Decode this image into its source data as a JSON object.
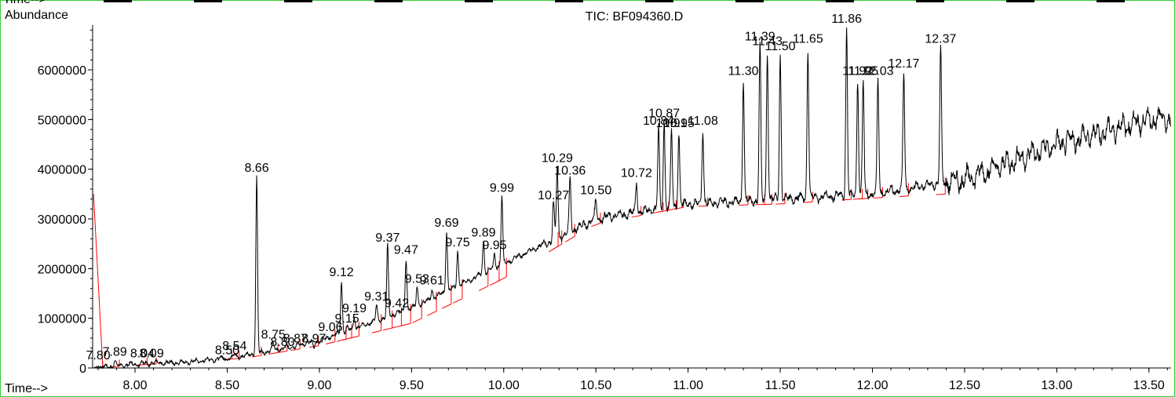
{
  "chart_data": {
    "type": "line",
    "title": "TIC: BF094360.D",
    "ylabel": "Abundance",
    "xlabel": "Time-->",
    "top_strip_label": "Time-->",
    "xlim": [
      7.77,
      13.62
    ],
    "ylim": [
      0,
      6900000
    ],
    "x_ticks": [
      "8.00",
      "8.50",
      "9.00",
      "9.50",
      "10.00",
      "10.50",
      "11.00",
      "11.50",
      "12.00",
      "12.50",
      "13.00",
      "13.50"
    ],
    "y_ticks": [
      "0",
      "1000000",
      "2000000",
      "3000000",
      "4000000",
      "5000000",
      "6000000"
    ],
    "colors": {
      "trace": "#000000",
      "baseline": "#ff0000",
      "frame": "#33cc33"
    },
    "baseline": [
      {
        "x": 7.78,
        "y": 0
      },
      {
        "x": 8.6,
        "y": 200000
      },
      {
        "x": 9.0,
        "y": 450000
      },
      {
        "x": 9.5,
        "y": 900000
      },
      {
        "x": 10.0,
        "y": 1800000
      },
      {
        "x": 10.5,
        "y": 2900000
      },
      {
        "x": 11.0,
        "y": 3250000
      },
      {
        "x": 11.5,
        "y": 3300000
      },
      {
        "x": 12.0,
        "y": 3420000
      },
      {
        "x": 12.4,
        "y": 3500000
      }
    ],
    "background": [
      {
        "x": 7.78,
        "y": 0
      },
      {
        "x": 8.0,
        "y": 80000
      },
      {
        "x": 8.3,
        "y": 120000
      },
      {
        "x": 8.6,
        "y": 250000
      },
      {
        "x": 9.0,
        "y": 550000
      },
      {
        "x": 9.5,
        "y": 1200000
      },
      {
        "x": 10.0,
        "y": 2100000
      },
      {
        "x": 10.5,
        "y": 3000000
      },
      {
        "x": 11.0,
        "y": 3300000
      },
      {
        "x": 11.5,
        "y": 3400000
      },
      {
        "x": 12.0,
        "y": 3500000
      },
      {
        "x": 12.5,
        "y": 3800000
      },
      {
        "x": 13.0,
        "y": 4500000
      },
      {
        "x": 13.5,
        "y": 5000000
      },
      {
        "x": 13.62,
        "y": 5000000
      }
    ],
    "peaks": [
      {
        "label": "7.80",
        "x": 7.8,
        "y": 80000
      },
      {
        "label": "7.89",
        "x": 7.89,
        "y": 150000
      },
      {
        "label": "8.04",
        "x": 8.04,
        "y": 120000
      },
      {
        "label": "8.09",
        "x": 8.09,
        "y": 120000
      },
      {
        "label": "8.50",
        "x": 8.5,
        "y": 180000
      },
      {
        "label": "8.54",
        "x": 8.54,
        "y": 270000
      },
      {
        "label": "8.66",
        "x": 8.66,
        "y": 3850000
      },
      {
        "label": "8.75",
        "x": 8.75,
        "y": 500000
      },
      {
        "label": "8.80",
        "x": 8.8,
        "y": 350000
      },
      {
        "label": "8.87",
        "x": 8.87,
        "y": 420000
      },
      {
        "label": "8.97",
        "x": 8.97,
        "y": 420000
      },
      {
        "label": "9.06",
        "x": 9.06,
        "y": 650000
      },
      {
        "label": "9.12",
        "x": 9.12,
        "y": 1750000
      },
      {
        "label": "9.15",
        "x": 9.15,
        "y": 820000
      },
      {
        "label": "9.19",
        "x": 9.19,
        "y": 1030000
      },
      {
        "label": "9.31",
        "x": 9.31,
        "y": 1260000
      },
      {
        "label": "9.37",
        "x": 9.37,
        "y": 2450000
      },
      {
        "label": "9.42",
        "x": 9.42,
        "y": 1130000
      },
      {
        "label": "9.47",
        "x": 9.47,
        "y": 2200000
      },
      {
        "label": "9.53",
        "x": 9.53,
        "y": 1620000
      },
      {
        "label": "9.61",
        "x": 9.61,
        "y": 1590000
      },
      {
        "label": "9.69",
        "x": 9.69,
        "y": 2750000
      },
      {
        "label": "9.75",
        "x": 9.75,
        "y": 2350000
      },
      {
        "label": "9.89",
        "x": 9.89,
        "y": 2550000
      },
      {
        "label": "9.95",
        "x": 9.95,
        "y": 2300000
      },
      {
        "label": "9.99",
        "x": 9.99,
        "y": 3450000
      },
      {
        "label": "10.27",
        "x": 10.27,
        "y": 3300000
      },
      {
        "label": "10.29",
        "x": 10.29,
        "y": 4050000
      },
      {
        "label": "10.36",
        "x": 10.36,
        "y": 3800000
      },
      {
        "label": "10.50",
        "x": 10.5,
        "y": 3400000
      },
      {
        "label": "10.72",
        "x": 10.72,
        "y": 3750000
      },
      {
        "label": "10.84",
        "x": 10.84,
        "y": 4800000
      },
      {
        "label": "10.87",
        "x": 10.87,
        "y": 4950000
      },
      {
        "label": "10.91",
        "x": 10.91,
        "y": 4750000
      },
      {
        "label": "10.95",
        "x": 10.95,
        "y": 4750000
      },
      {
        "label": "11.08",
        "x": 11.08,
        "y": 4800000
      },
      {
        "label": "11.30",
        "x": 11.3,
        "y": 5800000
      },
      {
        "label": "11.39",
        "x": 11.39,
        "y": 6500000
      },
      {
        "label": "11.43",
        "x": 11.43,
        "y": 6400000
      },
      {
        "label": "11.50",
        "x": 11.5,
        "y": 6300000
      },
      {
        "label": "11.65",
        "x": 11.65,
        "y": 6450000
      },
      {
        "label": "11.86",
        "x": 11.86,
        "y": 6850000
      },
      {
        "label": "11.92",
        "x": 11.92,
        "y": 5800000
      },
      {
        "label": "11.95",
        "x": 11.95,
        "y": 5800000
      },
      {
        "label": "12.03",
        "x": 12.03,
        "y": 5800000
      },
      {
        "label": "12.17",
        "x": 12.17,
        "y": 5950000
      },
      {
        "label": "12.37",
        "x": 12.37,
        "y": 6450000
      }
    ]
  }
}
